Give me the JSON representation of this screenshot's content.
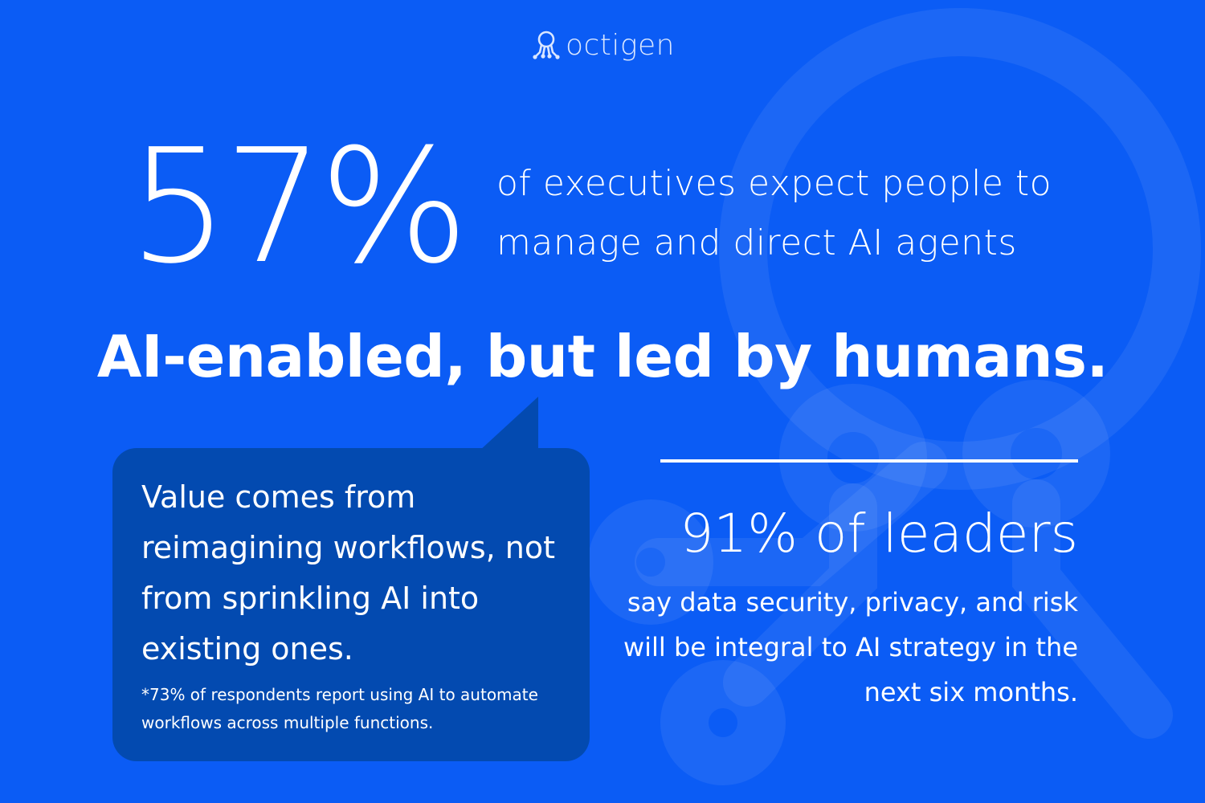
{
  "brand": {
    "name": "octigen",
    "logo_icon": "octopus-logo-icon"
  },
  "stat_primary": {
    "value": "57%",
    "description": "of executives expect people to manage and direct AI agents"
  },
  "headline": "AI-enabled, but led by humans.",
  "callout": {
    "quote": "Value comes from reimagining workflows, not from sprinkling AI into existing ones.",
    "footnote": "*73% of respondents report using AI to automate workflows across multiple functions."
  },
  "stat_secondary": {
    "value": "91% of leaders",
    "description": "say data security, privacy, and risk will be integral to AI strategy in the next six months."
  },
  "colors": {
    "background": "#0b5cf5",
    "callout_background": "#034ab0",
    "text": "#ffffff"
  }
}
